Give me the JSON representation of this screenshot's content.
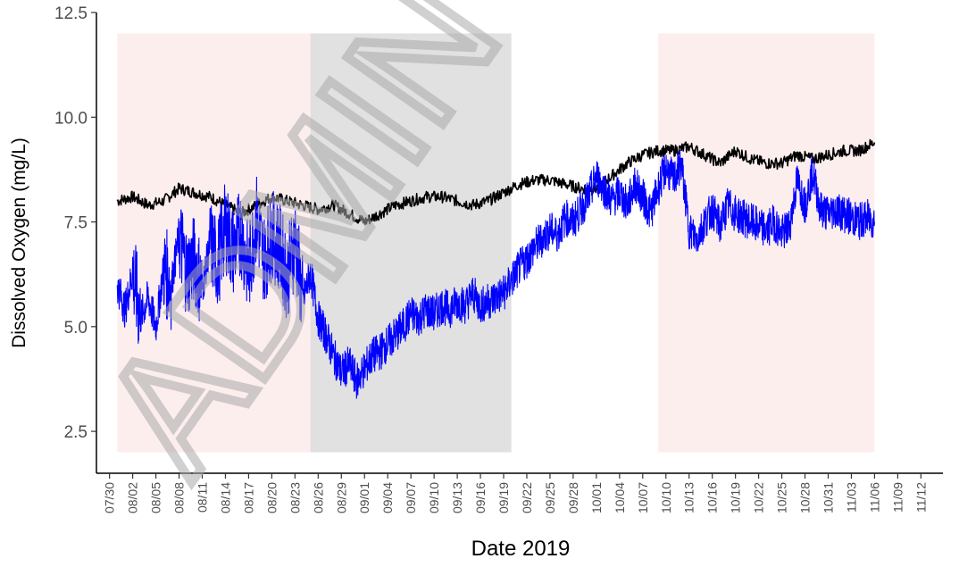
{
  "chart_data": {
    "type": "line",
    "title": "",
    "xlabel": "Date 2019",
    "ylabel": "Dissolved Oxygen (mg/L)",
    "ylim": [
      1.5,
      12.5
    ],
    "xlim": [
      "2019-07-29",
      "2019-11-13"
    ],
    "y_ticks": [
      2.5,
      5.0,
      7.5,
      10.0,
      12.5
    ],
    "y_tick_labels": [
      "2.5",
      "5.0",
      "7.5",
      "10.0",
      "12.5"
    ],
    "x_ticks": [
      "2019-07-30",
      "2019-08-02",
      "2019-08-05",
      "2019-08-08",
      "2019-08-11",
      "2019-08-14",
      "2019-08-17",
      "2019-08-20",
      "2019-08-23",
      "2019-08-26",
      "2019-08-29",
      "2019-09-01",
      "2019-09-04",
      "2019-09-07",
      "2019-09-10",
      "2019-09-13",
      "2019-09-16",
      "2019-09-19",
      "2019-09-22",
      "2019-09-25",
      "2019-09-28",
      "2019-10-01",
      "2019-10-04",
      "2019-10-07",
      "2019-10-10",
      "2019-10-13",
      "2019-10-16",
      "2019-10-19",
      "2019-10-22",
      "2019-10-25",
      "2019-10-28",
      "2019-10-31",
      "2019-11-03",
      "2019-11-06",
      "2019-11-09",
      "2019-11-12"
    ],
    "x_tick_labels": [
      "07/30",
      "08/02",
      "08/05",
      "08/08",
      "08/11",
      "08/14",
      "08/17",
      "08/20",
      "08/23",
      "08/26",
      "08/29",
      "09/01",
      "09/04",
      "09/07",
      "09/10",
      "09/13",
      "09/16",
      "09/19",
      "09/22",
      "09/25",
      "09/28",
      "10/01",
      "10/04",
      "10/07",
      "10/10",
      "10/13",
      "10/16",
      "10/19",
      "10/22",
      "10/25",
      "10/28",
      "10/31",
      "11/03",
      "11/06",
      "11/09",
      "11/12"
    ],
    "grid": false,
    "legend": "none",
    "shaded_regions": [
      {
        "start": "2019-07-31",
        "end": "2019-08-26",
        "y_range": [
          2.0,
          12.0
        ],
        "color": "#fdeeee"
      },
      {
        "start": "2019-08-25",
        "end": "2019-09-20",
        "y_range": [
          2.0,
          12.0
        ],
        "color": "#dcdcdc"
      },
      {
        "start": "2019-10-09",
        "end": "2019-11-06",
        "y_range": [
          2.0,
          12.0
        ],
        "color": "#fdeeee"
      }
    ],
    "series": [
      {
        "color": "#000000",
        "x": [
          "2019-07-31",
          "2019-08-02",
          "2019-08-04",
          "2019-08-06",
          "2019-08-08",
          "2019-08-10",
          "2019-08-12",
          "2019-08-14",
          "2019-08-16",
          "2019-08-18",
          "2019-08-20",
          "2019-08-22",
          "2019-08-24",
          "2019-08-26",
          "2019-08-28",
          "2019-08-30",
          "2019-09-01",
          "2019-09-03",
          "2019-09-05",
          "2019-09-07",
          "2019-09-09",
          "2019-09-11",
          "2019-09-13",
          "2019-09-15",
          "2019-09-17",
          "2019-09-19",
          "2019-09-21",
          "2019-09-23",
          "2019-09-25",
          "2019-09-27",
          "2019-09-29",
          "2019-10-01",
          "2019-10-03",
          "2019-10-05",
          "2019-10-07",
          "2019-10-09",
          "2019-10-11",
          "2019-10-13",
          "2019-10-15",
          "2019-10-17",
          "2019-10-19",
          "2019-10-21",
          "2019-10-23",
          "2019-10-25",
          "2019-10-27",
          "2019-10-29",
          "2019-10-31",
          "2019-11-02",
          "2019-11-04",
          "2019-11-06"
        ],
        "y": [
          8.0,
          8.1,
          7.9,
          8.0,
          8.3,
          8.2,
          8.1,
          7.9,
          7.7,
          7.9,
          8.1,
          8.0,
          7.9,
          7.8,
          7.9,
          7.7,
          7.5,
          7.7,
          7.9,
          8.0,
          8.1,
          8.1,
          8.0,
          7.9,
          8.0,
          8.2,
          8.4,
          8.5,
          8.5,
          8.4,
          8.3,
          8.3,
          8.6,
          8.9,
          9.1,
          9.2,
          9.2,
          9.3,
          9.1,
          8.9,
          9.2,
          9.0,
          8.9,
          8.9,
          9.1,
          9.0,
          9.1,
          9.2,
          9.2,
          9.4
        ]
      },
      {
        "color": "#0000ff",
        "x": [
          "2019-07-31",
          "2019-08-01",
          "2019-08-02",
          "2019-08-03",
          "2019-08-04",
          "2019-08-05",
          "2019-08-06",
          "2019-08-07",
          "2019-08-08",
          "2019-08-09",
          "2019-08-10",
          "2019-08-11",
          "2019-08-12",
          "2019-08-13",
          "2019-08-14",
          "2019-08-15",
          "2019-08-16",
          "2019-08-17",
          "2019-08-18",
          "2019-08-19",
          "2019-08-20",
          "2019-08-21",
          "2019-08-22",
          "2019-08-23",
          "2019-08-24",
          "2019-08-25",
          "2019-08-26",
          "2019-08-27",
          "2019-08-28",
          "2019-08-29",
          "2019-08-30",
          "2019-08-31",
          "2019-09-01",
          "2019-09-02",
          "2019-09-03",
          "2019-09-04",
          "2019-09-05",
          "2019-09-06",
          "2019-09-07",
          "2019-09-08",
          "2019-09-09",
          "2019-09-10",
          "2019-09-11",
          "2019-09-12",
          "2019-09-13",
          "2019-09-14",
          "2019-09-15",
          "2019-09-16",
          "2019-09-17",
          "2019-09-18",
          "2019-09-19",
          "2019-09-20",
          "2019-09-21",
          "2019-09-22",
          "2019-09-23",
          "2019-09-24",
          "2019-09-25",
          "2019-09-26",
          "2019-09-27",
          "2019-09-28",
          "2019-09-29",
          "2019-09-30",
          "2019-10-01",
          "2019-10-02",
          "2019-10-03",
          "2019-10-04",
          "2019-10-05",
          "2019-10-06",
          "2019-10-07",
          "2019-10-08",
          "2019-10-09",
          "2019-10-10",
          "2019-10-11",
          "2019-10-12",
          "2019-10-13",
          "2019-10-14",
          "2019-10-15",
          "2019-10-16",
          "2019-10-17",
          "2019-10-18",
          "2019-10-19",
          "2019-10-20",
          "2019-10-21",
          "2019-10-22",
          "2019-10-23",
          "2019-10-24",
          "2019-10-25",
          "2019-10-26",
          "2019-10-27",
          "2019-10-28",
          "2019-10-29",
          "2019-10-30",
          "2019-10-31",
          "2019-11-01",
          "2019-11-02",
          "2019-11-03",
          "2019-11-04",
          "2019-11-05",
          "2019-11-06"
        ],
        "y": [
          6.0,
          5.4,
          6.3,
          5.2,
          5.7,
          5.0,
          6.4,
          6.0,
          7.2,
          6.3,
          6.6,
          5.9,
          7.0,
          6.5,
          7.4,
          6.8,
          7.3,
          6.3,
          7.6,
          6.6,
          7.2,
          6.9,
          6.2,
          7.1,
          5.6,
          6.3,
          5.2,
          4.8,
          4.3,
          3.9,
          4.1,
          3.7,
          4.0,
          4.3,
          4.4,
          4.6,
          4.8,
          5.0,
          5.3,
          5.2,
          5.4,
          5.3,
          5.5,
          5.4,
          5.6,
          5.5,
          5.8,
          5.5,
          5.6,
          5.7,
          5.8,
          6.1,
          6.4,
          6.6,
          6.9,
          7.1,
          7.3,
          7.2,
          7.6,
          7.5,
          7.8,
          8.1,
          8.6,
          8.3,
          8.0,
          8.2,
          7.9,
          8.4,
          8.1,
          7.7,
          8.3,
          8.8,
          8.5,
          8.9,
          7.3,
          7.1,
          7.5,
          7.8,
          7.4,
          7.9,
          7.7,
          7.6,
          7.5,
          7.4,
          7.3,
          7.5,
          7.2,
          7.4,
          8.5,
          7.9,
          8.7,
          7.8,
          7.7,
          7.8,
          7.7,
          7.6,
          7.5,
          7.6,
          7.5
        ]
      }
    ]
  },
  "watermark": {
    "text": "ADMIN",
    "color": "#aaaaaa"
  }
}
